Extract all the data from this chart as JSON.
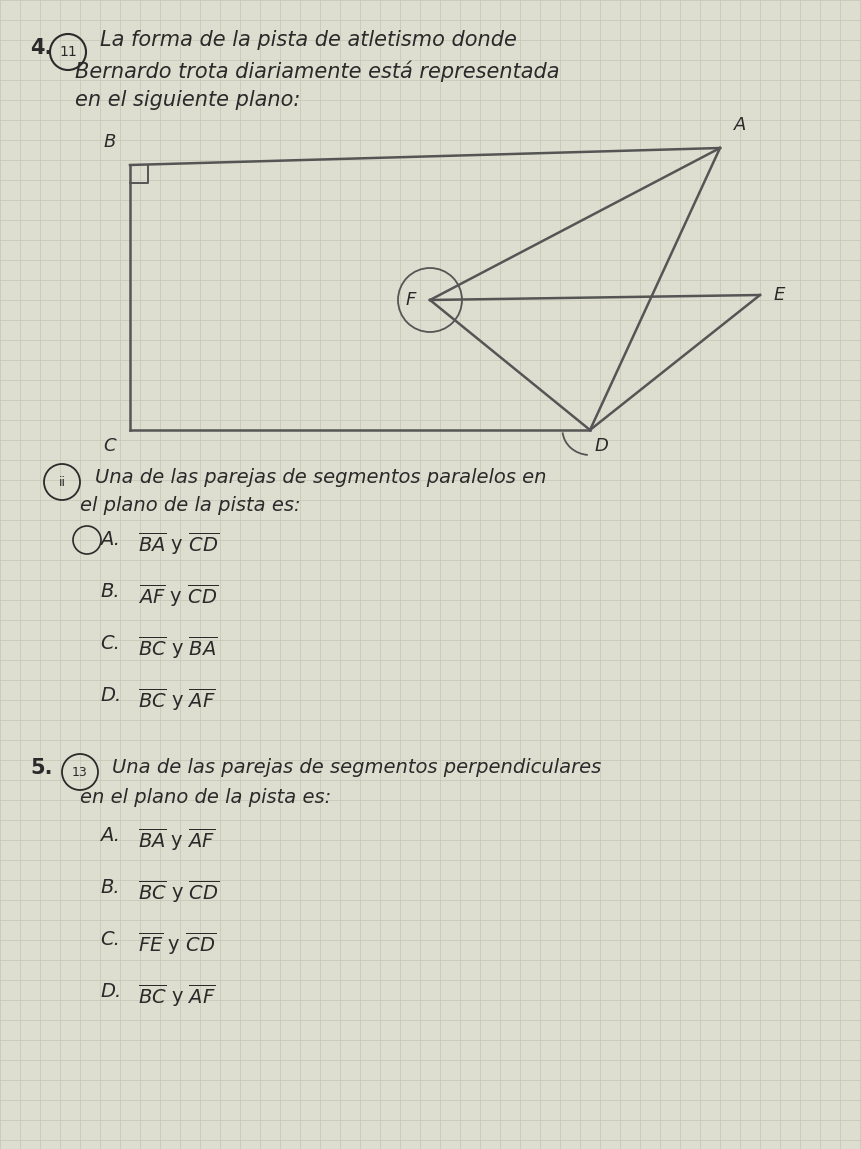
{
  "background_color": "#deded0",
  "grid_color": "#c5c5b5",
  "text_color": "#2a2a2a",
  "title_number": "4.",
  "title_circle_num": "11",
  "title_line1": "La forma de la pista de atletismo donde",
  "title_line2": "Bernardo trota diariamente está representada",
  "title_line3": "en el siguiente plano:",
  "q4_circle_num": "ii",
  "q4_label1": "Una de las parejas de segmentos paralelos en",
  "q4_label2": "el plano de la pista es:",
  "q5_number": "5.",
  "q5_circle_num": "13",
  "q5_label1": "Una de las parejas de segmentos perpendiculares",
  "q5_label2": "en el plano de la pista es:"
}
